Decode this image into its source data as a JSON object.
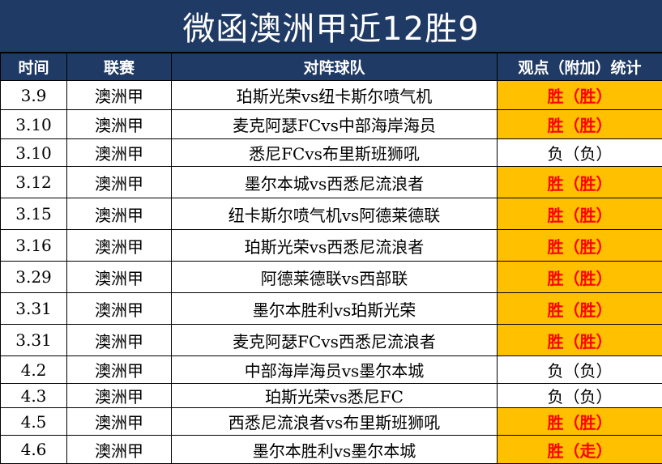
{
  "title": "微函澳洲甲近12胜9",
  "headers": {
    "time": "时间",
    "league": "联赛",
    "match": "对阵球队",
    "stat": "观点（附加）统计"
  },
  "colors": {
    "header_bg": "#1f3a64",
    "win_bg": "#ffc000",
    "win_text": "#ff0000"
  },
  "rows": [
    {
      "time": "3.9",
      "league": "澳洲甲",
      "match": "珀斯光荣vs纽卡斯尔喷气机",
      "result": "胜（胜）",
      "outcome": "win"
    },
    {
      "time": "3.10",
      "league": "澳洲甲",
      "match": "麦克阿瑟FCvs中部海岸海员",
      "result": "胜（胜）",
      "outcome": "win"
    },
    {
      "time": "3.10",
      "league": "澳洲甲",
      "match": "悉尼FCvs布里斯班狮吼",
      "result": "负（负）",
      "outcome": "loss"
    },
    {
      "time": "3.12",
      "league": "澳洲甲",
      "match": "墨尔本城vs西悉尼流浪者",
      "result": "胜（胜）",
      "outcome": "win"
    },
    {
      "time": "3.15",
      "league": "澳洲甲",
      "match": "纽卡斯尔喷气机vs阿德莱德联",
      "result": "胜（胜）",
      "outcome": "win"
    },
    {
      "time": "3.16",
      "league": "澳洲甲",
      "match": "珀斯光荣vs西悉尼流浪者",
      "result": "胜（胜）",
      "outcome": "win"
    },
    {
      "time": "3.29",
      "league": "澳洲甲",
      "match": "阿德莱德联vs西部联",
      "result": "胜（胜）",
      "outcome": "win"
    },
    {
      "time": "3.31",
      "league": "澳洲甲",
      "match": "墨尔本胜利vs珀斯光荣",
      "result": "胜（胜）",
      "outcome": "win"
    },
    {
      "time": "3.31",
      "league": "澳洲甲",
      "match": "麦克阿瑟FCvs西悉尼流浪者",
      "result": "胜（胜）",
      "outcome": "win"
    },
    {
      "time": "4.2",
      "league": "澳洲甲",
      "match": "中部海岸海员vs墨尔本城",
      "result": "负（负）",
      "outcome": "loss"
    },
    {
      "time": "4.3",
      "league": "澳洲甲",
      "match": "珀斯光荣vs悉尼FC",
      "result": "负（负）",
      "outcome": "loss"
    },
    {
      "time": "4.5",
      "league": "澳洲甲",
      "match": "西悉尼流浪者vs布里斯班狮吼",
      "result": "胜（胜）",
      "outcome": "win"
    },
    {
      "time": "4.6",
      "league": "澳洲甲",
      "match": "墨尔本胜利vs墨尔本城",
      "result": "胜（走）",
      "outcome": "win"
    }
  ]
}
